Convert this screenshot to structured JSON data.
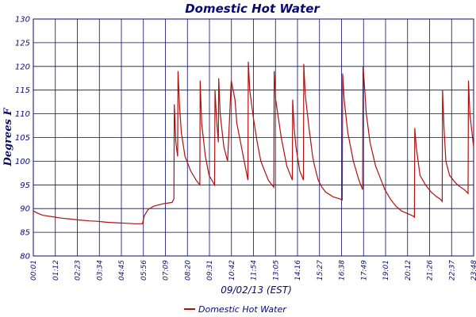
{
  "chart_data": {
    "type": "line",
    "title": "Domestic Hot Water",
    "xlabel": "09/02/13 (EST)",
    "ylabel": "Degrees F",
    "ylim": [
      80,
      130
    ],
    "yticks": [
      80,
      85,
      90,
      95,
      100,
      105,
      110,
      115,
      120,
      125,
      130
    ],
    "xticks": [
      "00:01",
      "01:12",
      "02:23",
      "03:34",
      "04:45",
      "05:56",
      "07:09",
      "08:20",
      "09:31",
      "10:42",
      "11:54",
      "13:05",
      "14:16",
      "15:27",
      "16:38",
      "17:49",
      "19:01",
      "20:12",
      "21:26",
      "22:37",
      "23:48"
    ],
    "grid": true,
    "legend": "bottom",
    "line_color": "#b01010",
    "series": [
      {
        "name": "Domestic Hot Water",
        "x": [
          0.0,
          0.25,
          0.5,
          1.0,
          1.5,
          2.0,
          2.5,
          3.0,
          3.5,
          4.0,
          4.5,
          5.0,
          5.5,
          5.9,
          6.0,
          6.2,
          6.5,
          7.0,
          7.5,
          7.6,
          7.62,
          7.7,
          7.8,
          7.82,
          7.9,
          8.0,
          8.2,
          8.5,
          8.8,
          9.0,
          9.02,
          9.1,
          9.3,
          9.5,
          9.8,
          9.82,
          9.9,
          10.0,
          10.02,
          10.1,
          10.3,
          10.5,
          10.7,
          10.9,
          11.0,
          11.2,
          11.4,
          11.6,
          11.62,
          11.7,
          11.9,
          12.1,
          12.3,
          12.5,
          12.7,
          12.9,
          13.0,
          13.02,
          13.1,
          13.4,
          13.7,
          14.0,
          14.02,
          14.1,
          14.2,
          14.4,
          14.6,
          14.62,
          14.7,
          14.9,
          15.0,
          15.1,
          15.2,
          15.4,
          15.6,
          15.8,
          16.2,
          16.6,
          16.7,
          16.72,
          16.8,
          17.0,
          17.3,
          17.6,
          17.8,
          17.82,
          17.9,
          18.0,
          18.2,
          18.5,
          18.8,
          19.0,
          19.3,
          19.6,
          19.9,
          20.2,
          20.5,
          20.6,
          20.62,
          20.7,
          20.9,
          21.2,
          21.5,
          21.8,
          22.0,
          22.1,
          22.12,
          22.2,
          22.3,
          22.5,
          22.8,
          23.0,
          23.3,
          23.5,
          23.52,
          23.6,
          23.8
        ],
        "y": [
          89.5,
          89.0,
          88.6,
          88.3,
          88.0,
          87.8,
          87.6,
          87.4,
          87.3,
          87.1,
          87.0,
          86.9,
          86.8,
          86.8,
          88.5,
          89.8,
          90.5,
          91.0,
          91.3,
          92.0,
          112.0,
          104.0,
          101.0,
          119.0,
          112.0,
          106.0,
          101.0,
          98.0,
          96.0,
          95.0,
          117.0,
          108.0,
          101.0,
          97.0,
          95.0,
          115.0,
          109.0,
          104.0,
          117.5,
          110.0,
          103.0,
          100.0,
          117.0,
          113.0,
          108.0,
          104.0,
          100.0,
          96.0,
          121.0,
          115.0,
          109.0,
          104.0,
          100.0,
          98.0,
          96.0,
          95.0,
          94.5,
          119.0,
          113.0,
          105.0,
          99.0,
          96.0,
          113.0,
          107.0,
          103.0,
          98.0,
          96.0,
          120.5,
          114.0,
          107.0,
          104.0,
          101.0,
          99.0,
          96.0,
          94.5,
          93.5,
          92.5,
          92.0,
          91.8,
          118.5,
          113.0,
          106.0,
          100.0,
          96.0,
          94.0,
          120.0,
          116.0,
          110.0,
          104.0,
          99.0,
          96.0,
          94.0,
          92.0,
          90.5,
          89.5,
          89.0,
          88.5,
          88.2,
          107.0,
          103.0,
          97.0,
          95.0,
          93.5,
          92.5,
          92.0,
          91.5,
          115.0,
          107.0,
          100.0,
          97.0,
          95.5,
          94.8,
          94.0,
          93.2,
          117.0,
          110.0,
          103.0
        ]
      }
    ]
  }
}
